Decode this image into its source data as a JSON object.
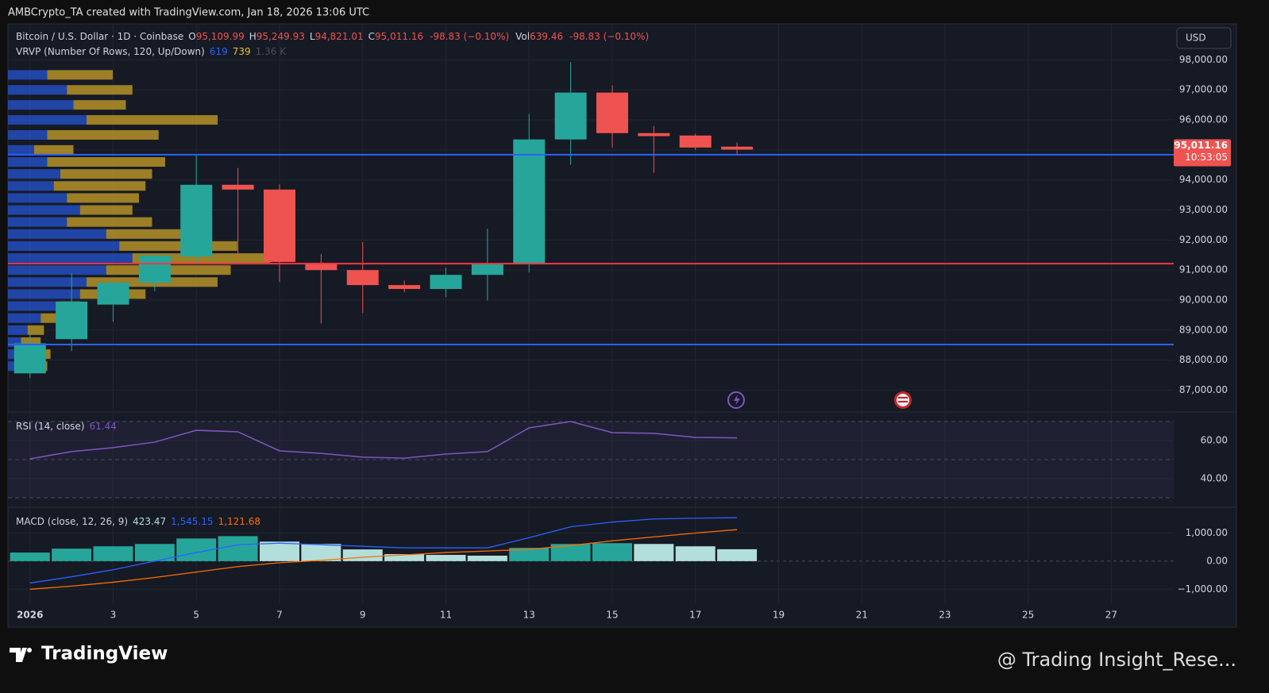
{
  "header": {
    "attribution": "AMBCrypto_TA created with TradingView.com, Jan 18, 2026 13:06 UTC"
  },
  "footer": {
    "brand": "TradingView",
    "watermark": "@ Trading Insight_Rese..."
  },
  "chart_data": [
    {
      "type": "candlestick",
      "title": "Bitcoin / U.S. Dollar · 1D · Coinbase",
      "legend": {
        "o_label": "O",
        "o": "95,109.99",
        "h_label": "H",
        "h": "95,249.93",
        "l_label": "L",
        "l": "94,821.01",
        "c_label": "C",
        "c": "95,011.16",
        "change": "-98.83 (−0.10%)",
        "vol_label": "Vol",
        "vol": "639.46",
        "vol_change": "-98.83 (−0.10%)"
      },
      "indicator": {
        "label": "VRVP (Number Of Rows, 120, Up/Down)",
        "up": "619",
        "down": "739",
        "total": "1.36 K"
      },
      "currency": "USD",
      "last_price_label": "95,011.16",
      "countdown": "10:53:05",
      "x": [
        1,
        2,
        3,
        4,
        5,
        6,
        7,
        8,
        9,
        10,
        11,
        12,
        13,
        14,
        15,
        16,
        17,
        18
      ],
      "open": [
        87560,
        88700,
        89850,
        90580,
        91450,
        93840,
        93680,
        91240,
        91000,
        90500,
        90370,
        90840,
        91190,
        95350,
        96910,
        95560,
        95480,
        95109.99
      ],
      "high": [
        88900,
        90900,
        90600,
        91500,
        94820,
        94400,
        93850,
        91530,
        91930,
        90650,
        91080,
        92380,
        96200,
        97920,
        97150,
        95800,
        95530,
        95249.93
      ],
      "low": [
        87400,
        88300,
        89280,
        90300,
        91300,
        91280,
        90600,
        89220,
        89570,
        90260,
        90100,
        89990,
        90920,
        94500,
        95080,
        94240,
        95000,
        94821.01
      ],
      "close": [
        88560,
        89950,
        90580,
        91480,
        93840,
        93680,
        91270,
        91000,
        90500,
        90370,
        90840,
        91190,
        95350,
        96910,
        95560,
        95460,
        95080,
        95011.16
      ],
      "up_color": "#26a69a",
      "down_color": "#ef5350",
      "xlim": [
        0.47,
        28.5
      ],
      "xticks": [
        {
          "value": 1,
          "label": "2026"
        },
        3,
        5,
        7,
        9,
        11,
        13,
        15,
        17,
        19,
        21,
        23,
        25,
        27
      ],
      "ylim": [
        86300,
        99200
      ],
      "yticks": [
        {
          "value": 87000,
          "label": "87,000.00"
        },
        {
          "value": 88000,
          "label": "88,000.00"
        },
        {
          "value": 89000,
          "label": "89,000.00"
        },
        {
          "value": 90000,
          "label": "90,000.00"
        },
        {
          "value": 91000,
          "label": "91,000.00"
        },
        {
          "value": 92000,
          "label": "92,000.00"
        },
        {
          "value": 93000,
          "label": "93,000.00"
        },
        {
          "value": 94000,
          "label": "94,000.00"
        },
        {
          "value": 95000,
          "label": "95,000.00"
        },
        {
          "value": 96000,
          "label": "96,000.00"
        },
        {
          "value": 97000,
          "label": "97,000.00"
        },
        {
          "value": 98000,
          "label": "98,000.00"
        }
      ],
      "levels": [
        {
          "value": 94840,
          "color": "#2962ff"
        },
        {
          "value": 91215,
          "color": "#f23645"
        },
        {
          "value": 88520,
          "color": "#2962ff"
        }
      ],
      "volume_profile": {
        "up_color": "#2962ff",
        "down_color": "#c9a227",
        "price": [
          97500,
          97000,
          96500,
          96000,
          95500,
          95000,
          94600,
          94200,
          93800,
          93400,
          93000,
          92600,
          92200,
          91800,
          91400,
          91000,
          90600,
          90200,
          89800,
          89400,
          89000,
          88600,
          88200,
          87800
        ],
        "up": [
          60,
          90,
          100,
          120,
          60,
          40,
          60,
          80,
          70,
          90,
          110,
          90,
          150,
          170,
          190,
          150,
          120,
          110,
          80,
          50,
          30,
          20,
          15,
          20
        ],
        "down": [
          100,
          100,
          80,
          200,
          170,
          60,
          180,
          140,
          140,
          110,
          80,
          130,
          120,
          180,
          210,
          190,
          200,
          100,
          30,
          30,
          25,
          30,
          50,
          40
        ]
      },
      "grid": true
    },
    {
      "type": "line",
      "title": "RSI (14, close)",
      "last_value_label": "61.44",
      "color": "#7e57c2",
      "x": [
        1,
        2,
        3,
        4,
        5,
        6,
        7,
        8,
        9,
        10,
        11,
        12,
        13,
        14,
        15,
        16,
        17,
        18
      ],
      "values": [
        50.4,
        54.2,
        56.3,
        59.2,
        65.4,
        64.6,
        54.6,
        53.3,
        51.3,
        50.8,
        52.9,
        54.2,
        66.7,
        70,
        64.2,
        63.8,
        61.7,
        61.44
      ],
      "xlim": [
        0.47,
        28.5
      ],
      "ylim": [
        25.4,
        74.6
      ],
      "yticks": [
        {
          "value": 40,
          "label": "40.00"
        },
        {
          "value": 60,
          "label": "60.00"
        }
      ],
      "bands": [
        30,
        50,
        70
      ]
    },
    {
      "type": "macd",
      "title": "MACD (close, 12, 26, 9)",
      "x": [
        1,
        2,
        3,
        4,
        5,
        6,
        7,
        8,
        9,
        10,
        11,
        12,
        13,
        14,
        15,
        16,
        17,
        18
      ],
      "histogram": {
        "value_label": "423.47",
        "values": [
          306,
          444,
          528,
          611,
          806,
          889,
          694,
          611,
          417,
          250,
          222,
          194,
          472,
          611,
          639,
          611,
          528,
          423.47
        ],
        "colors": [
          "#26a69a",
          "#26a69a",
          "#26a69a",
          "#26a69a",
          "#26a69a",
          "#26a69a",
          "#b2dfdb",
          "#b2dfdb",
          "#b2dfdb",
          "#b2dfdb",
          "#b2dfdb",
          "#b2dfdb",
          "#26a69a",
          "#26a69a",
          "#26a69a",
          "#b2dfdb",
          "#b2dfdb",
          "#b2dfdb"
        ]
      },
      "lines": [
        {
          "value_label": "1,545.15",
          "color": "#2962ff",
          "values": [
            -778,
            -556,
            -306,
            0,
            306,
            583,
            639,
            583,
            528,
            472,
            472,
            472,
            833,
            1222,
            1389,
            1500,
            1528,
            1545.15
          ]
        },
        {
          "value_label": "1,121.68",
          "color": "#ff6d00",
          "values": [
            -1000,
            -889,
            -750,
            -583,
            -389,
            -194,
            -56,
            28,
            139,
            222,
            306,
            361,
            417,
            556,
            722,
            861,
            1000,
            1121.68
          ]
        }
      ],
      "xlim": [
        0.47,
        28.5
      ],
      "ylim": [
        -1500,
        1889
      ],
      "yticks": [
        {
          "value": -1000,
          "label": "−1,000.00"
        },
        {
          "value": 0,
          "label": "0.00"
        },
        {
          "value": 1000,
          "label": "1,000.00"
        }
      ]
    }
  ]
}
